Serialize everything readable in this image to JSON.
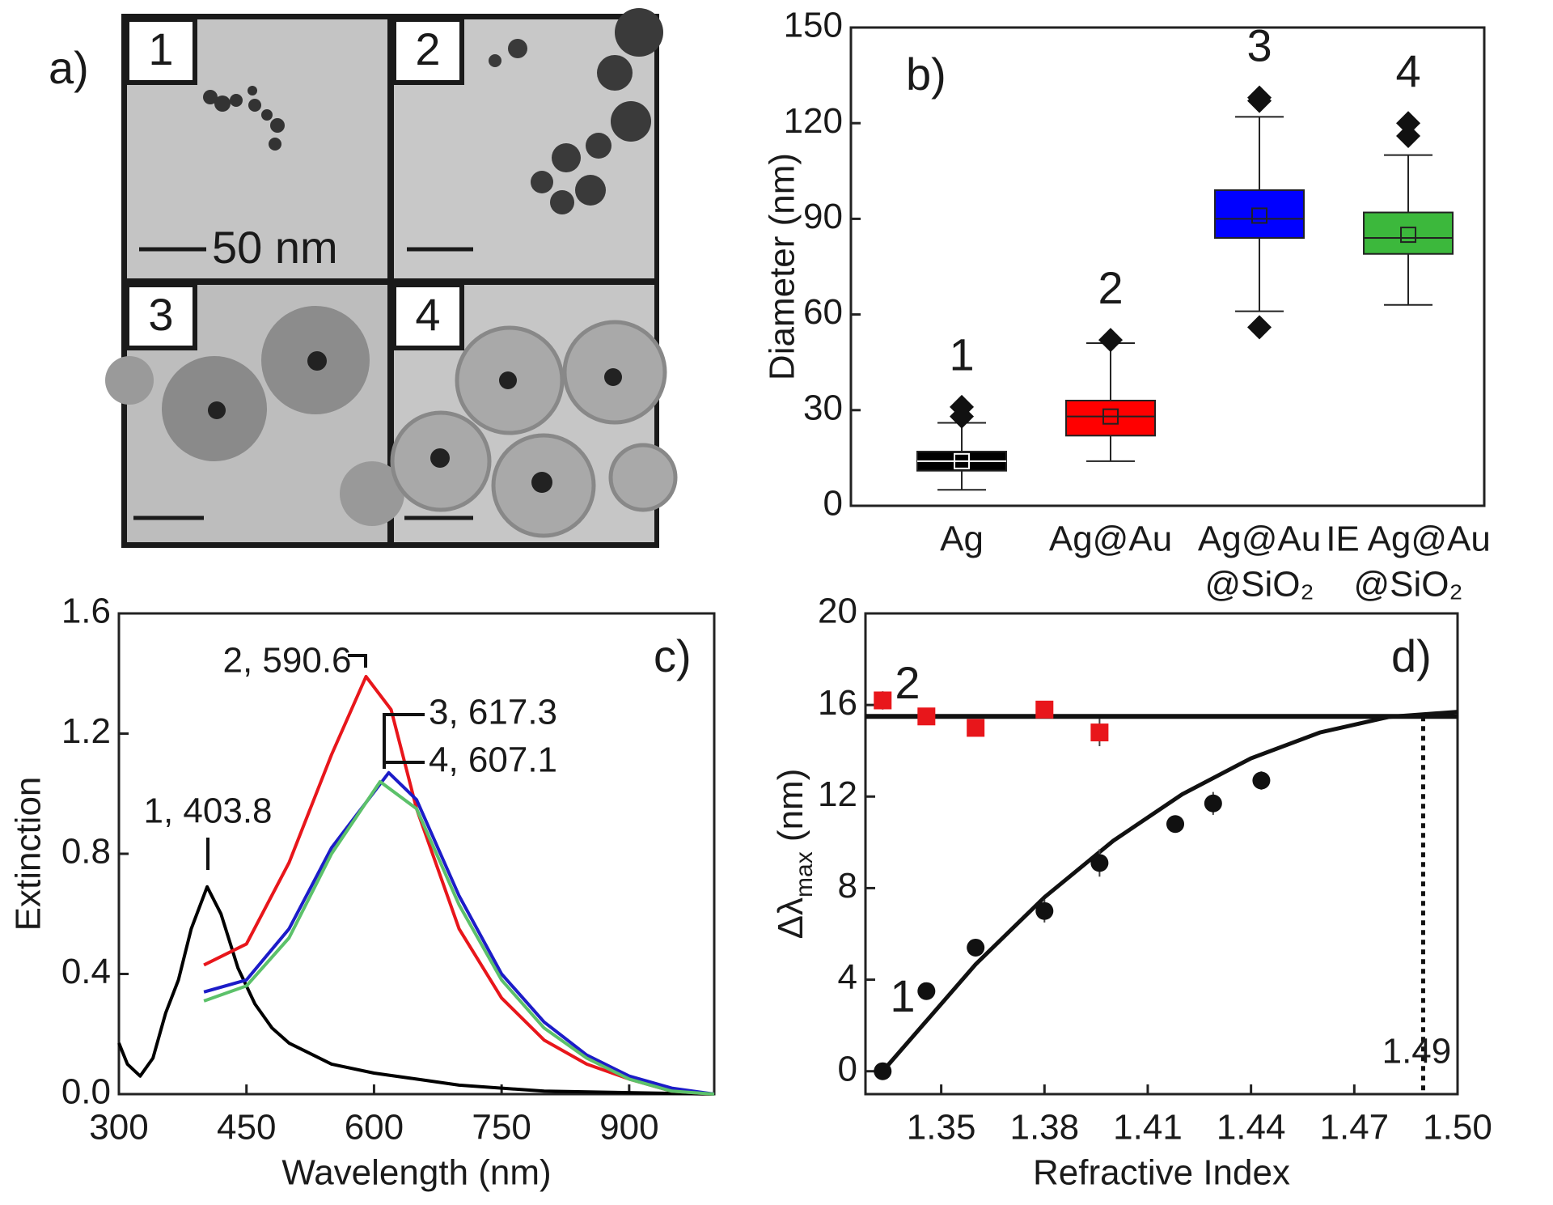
{
  "chart_data": [
    {
      "type": "image",
      "label": "a)",
      "insets": [
        "1",
        "2",
        "3",
        "4"
      ],
      "scale_bar": "50 nm"
    },
    {
      "type": "box",
      "label": "b)",
      "y_label": "Diameter (nm)",
      "categories": [
        [
          "Ag"
        ],
        [
          "Ag@Au"
        ],
        [
          "Ag@Au",
          "@SiO₂"
        ],
        [
          "IE Ag@Au",
          "@SiO₂"
        ]
      ],
      "group_labels": [
        "1",
        "2",
        "3",
        "4"
      ],
      "boxes": [
        {
          "color": "#000000",
          "low": 5,
          "q1": 11,
          "median": 14,
          "q3": 17,
          "high": 26,
          "mean": 14,
          "outliers": [
            28,
            31
          ]
        },
        {
          "color": "#ff0000",
          "low": 14,
          "q1": 22,
          "median": 28,
          "q3": 33,
          "high": 51,
          "mean": 28,
          "outliers": [
            52
          ]
        },
        {
          "color": "#0000ff",
          "low": 61,
          "q1": 84,
          "median": 90,
          "q3": 99,
          "high": 122,
          "mean": 91,
          "outliers": [
            56,
            127,
            128
          ]
        },
        {
          "color": "#3cb83c",
          "low": 63,
          "q1": 79,
          "median": 84,
          "q3": 92,
          "high": 110,
          "mean": 85,
          "outliers": [
            116,
            120
          ]
        }
      ],
      "ylim": [
        0,
        150
      ],
      "yticks": [
        0,
        30,
        60,
        90,
        120,
        150
      ]
    },
    {
      "type": "line",
      "label": "c)",
      "x_label": "Wavelength (nm)",
      "y_label": "Extinction",
      "xlim": [
        300,
        1000
      ],
      "xticks": [
        300,
        450,
        600,
        750,
        900
      ],
      "ylim": [
        0,
        1.6
      ],
      "yticks": [
        {
          "value": 0,
          "label": "0.0"
        },
        0.4,
        0.8,
        1.2,
        1.6
      ],
      "annotations": [
        "1, 403.8",
        "2, 590.6",
        "3, 617.3",
        "4, 607.1"
      ],
      "series": [
        {
          "color": "#000000",
          "x": [
            300,
            310,
            325,
            340,
            355,
            370,
            385,
            403.8,
            420,
            440,
            460,
            480,
            500,
            550,
            600,
            650,
            700,
            800,
            1000
          ],
          "values": [
            0.17,
            0.1,
            0.06,
            0.12,
            0.27,
            0.38,
            0.55,
            0.69,
            0.6,
            0.42,
            0.3,
            0.22,
            0.17,
            0.1,
            0.07,
            0.05,
            0.03,
            0.01,
            0
          ]
        },
        {
          "color": "#e8161b",
          "x": [
            400,
            450,
            500,
            550,
            590.6,
            620,
            650,
            700,
            750,
            800,
            850,
            900,
            950,
            1000
          ],
          "values": [
            0.43,
            0.5,
            0.77,
            1.13,
            1.39,
            1.28,
            0.95,
            0.55,
            0.32,
            0.18,
            0.1,
            0.05,
            0.01,
            0
          ]
        },
        {
          "color": "#1c1cc8",
          "x": [
            400,
            450,
            500,
            550,
            617.3,
            650,
            700,
            750,
            800,
            850,
            900,
            950,
            1000
          ],
          "values": [
            0.34,
            0.38,
            0.55,
            0.82,
            1.07,
            0.98,
            0.66,
            0.4,
            0.24,
            0.13,
            0.06,
            0.02,
            0
          ]
        },
        {
          "color": "#5cc16a",
          "x": [
            400,
            450,
            500,
            550,
            607.1,
            650,
            700,
            750,
            800,
            850,
            900,
            950,
            1000
          ],
          "values": [
            0.31,
            0.36,
            0.52,
            0.8,
            1.04,
            0.95,
            0.63,
            0.38,
            0.22,
            0.12,
            0.05,
            0.01,
            0
          ]
        }
      ]
    },
    {
      "type": "scatter",
      "label": "d)",
      "x_label": "Refractive Index",
      "y_label": [
        "Δλ",
        "max",
        " (nm)"
      ],
      "xlim": [
        1.328,
        1.5
      ],
      "xticks": [
        1.35,
        1.38,
        1.41,
        1.44,
        1.47,
        {
          "value": 1.5,
          "label": "1.50"
        }
      ],
      "ylim": [
        -1,
        20
      ],
      "yticks": [
        0,
        4,
        8,
        12,
        16,
        20
      ],
      "series": [
        {
          "name": "1",
          "color": "#111111",
          "x": [
            1.333,
            1.3457,
            1.36,
            1.38,
            1.396,
            1.418,
            1.429,
            1.443
          ],
          "values": [
            0,
            3.5,
            5.4,
            7.0,
            9.1,
            10.8,
            11.7,
            12.7
          ],
          "errors": [
            0.3,
            0.3,
            0.3,
            0.5,
            0.6,
            0.3,
            0.5,
            0.4
          ]
        },
        {
          "name": "2",
          "color": "#e8161b",
          "x": [
            1.333,
            1.3457,
            1.36,
            1.38,
            1.396
          ],
          "values": [
            16.2,
            15.5,
            15.0,
            15.8,
            14.8
          ],
          "errors": [
            0.4,
            0.3,
            0.3,
            0.3,
            0.6
          ]
        }
      ],
      "fit": {
        "x": [
          1.333,
          1.36,
          1.38,
          1.4,
          1.42,
          1.44,
          1.46,
          1.48,
          1.5
        ],
        "values": [
          0,
          4.67,
          7.6,
          10.07,
          12.1,
          13.67,
          14.8,
          15.48,
          15.7
        ]
      },
      "reference": 15.5,
      "cutoff": 1.49
    }
  ]
}
